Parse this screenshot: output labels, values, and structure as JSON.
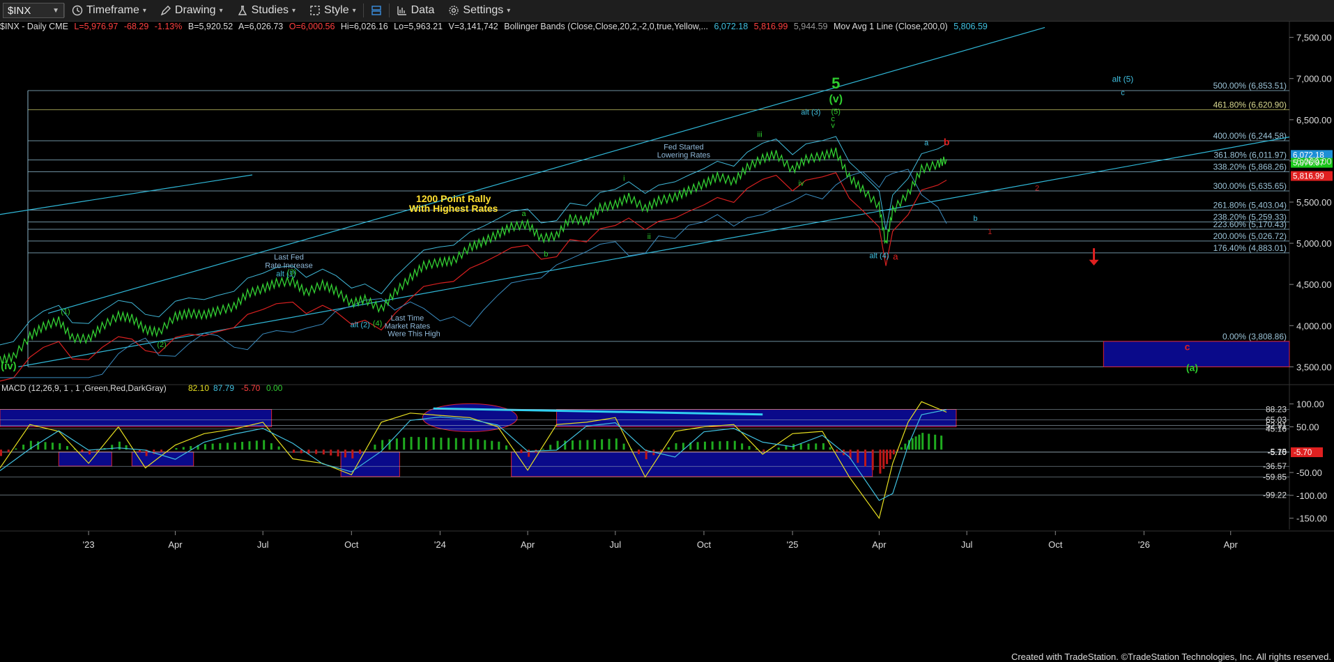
{
  "toolbar": {
    "symbol": "$INX",
    "items": [
      {
        "label": "Timeframe",
        "icon": "clock-icon"
      },
      {
        "label": "Drawing",
        "icon": "pencil-icon"
      },
      {
        "label": "Studies",
        "icon": "flask-icon"
      },
      {
        "label": "Style",
        "icon": "style-icon"
      },
      {
        "label": "",
        "icon": "layout-icon"
      },
      {
        "label": "Data",
        "icon": "bar-chart-icon"
      },
      {
        "label": "Settings",
        "icon": "gear-icon"
      }
    ]
  },
  "infobar": {
    "symbol": "$INX - Daily  CME",
    "last": "L=5,976.97",
    "change": "-68.29",
    "change_pct": "-1.13%",
    "bid": "B=5,920.52",
    "ask": "A=6,026.73",
    "open": "O=6,000.56",
    "high": "Hi=6,026.16",
    "low": "Lo=5,963.21",
    "volume": "V=3,141,742",
    "bollinger_label": "Bollinger Bands (Close,Close,20,2,-2,0,true,Yellow,...",
    "bb_upper": "6,072.18",
    "bb_lower": "5,816.99",
    "bb_mid": "5,944.59",
    "mavg_label": "Mov Avg 1 Line (Close,200,0)",
    "mavg_value": "5,806.59"
  },
  "macd_header": {
    "label": "MACD (12,26,9, 1 , 1 ,Green,Red,DarkGray)",
    "v1": "82.10",
    "v2": "87.79",
    "v3": "-5.70",
    "v4": "0.00"
  },
  "footer": "Created with TradeStation. ©TradeStation Technologies, Inc. All rights reserved.",
  "chart_data": [
    {
      "type": "line",
      "title": "$INX - Daily",
      "x": [
        "2022-10-01",
        "2022-10-15",
        "2022-11-01",
        "2022-11-15",
        "2022-12-01",
        "2022-12-15",
        "2023-01-01",
        "2023-01-15",
        "2023-02-01",
        "2023-02-15",
        "2023-03-01",
        "2023-03-15",
        "2023-04-01",
        "2023-04-15",
        "2023-05-01",
        "2023-05-15",
        "2023-06-01",
        "2023-06-15",
        "2023-07-01",
        "2023-07-15",
        "2023-08-01",
        "2023-08-15",
        "2023-09-01",
        "2023-09-15",
        "2023-10-01",
        "2023-10-15",
        "2023-11-01",
        "2023-11-15",
        "2023-12-01",
        "2023-12-15",
        "2024-01-01",
        "2024-01-15",
        "2024-02-01",
        "2024-02-15",
        "2024-03-01",
        "2024-03-15",
        "2024-04-01",
        "2024-04-15",
        "2024-05-01",
        "2024-05-15",
        "2024-06-01",
        "2024-06-15",
        "2024-07-01",
        "2024-07-15",
        "2024-08-01",
        "2024-08-15",
        "2024-09-01",
        "2024-09-15",
        "2024-10-01",
        "2024-10-15",
        "2024-11-01",
        "2024-11-15",
        "2024-12-01",
        "2024-12-15",
        "2025-01-01",
        "2025-01-15",
        "2025-02-01",
        "2025-02-15",
        "2025-03-01",
        "2025-03-15",
        "2025-04-01",
        "2025-04-08",
        "2025-04-15",
        "2025-05-01",
        "2025-05-15",
        "2025-06-01",
        "2025-06-10"
      ],
      "series": [
        {
          "values": [
            3580,
            3620,
            3870,
            3990,
            4060,
            3850,
            3840,
            3990,
            4120,
            4090,
            3950,
            3920,
            4110,
            4150,
            4130,
            4180,
            4230,
            4390,
            4450,
            4520,
            4540,
            4400,
            4500,
            4420,
            4270,
            4320,
            4200,
            4400,
            4580,
            4730,
            4770,
            4790,
            4950,
            5020,
            5110,
            5200,
            5230,
            5060,
            5090,
            5300,
            5270,
            5430,
            5470,
            5560,
            5420,
            5520,
            5560,
            5640,
            5720,
            5810,
            5750,
            5920,
            6030,
            6080,
            5890,
            6020,
            6060,
            6110,
            5800,
            5650,
            5450,
            4980,
            5400,
            5600,
            5900,
            5960,
            6020
          ]
        }
      ],
      "ylim": [
        3300,
        7700
      ],
      "y_ticks": [
        "7,500.00",
        "7,000.00",
        "6,500.00",
        "6,000.00",
        "5,500.00",
        "5,000.00",
        "4,500.00",
        "4,000.00",
        "3,500.00"
      ],
      "x_ticks": [
        "'23",
        "Apr",
        "Jul",
        "Oct",
        "'24",
        "Apr",
        "Jul",
        "Oct",
        "'25",
        "Apr",
        "Jul",
        "Oct",
        "'26",
        "Apr"
      ],
      "fib_levels": [
        {
          "label": "500.00% (6,853.51)",
          "value": 6853.51
        },
        {
          "label": "461.80% (6,620.90)",
          "value": 6620.9
        },
        {
          "label": "400.00% (6,244.58)",
          "value": 6244.58
        },
        {
          "label": "361.80% (6,011.97)",
          "value": 6011.97
        },
        {
          "label": "338.20% (5,868.26)",
          "value": 5868.26
        },
        {
          "label": "300.00% (5,635.65)",
          "value": 5635.65
        },
        {
          "label": "261.80% (5,403.04)",
          "value": 5403.04
        },
        {
          "label": "238.20% (5,259.33)",
          "value": 5259.33
        },
        {
          "label": "223.60% (5,170.43)",
          "value": 5170.43
        },
        {
          "label": "200.00% (5,026.72)",
          "value": 5026.72
        },
        {
          "label": "176.40% (4,883.01)",
          "value": 4883.01
        },
        {
          "label": "0.00% (3,808.86)",
          "value": 3808.86
        },
        {
          "label": "3,500.00",
          "value": 3500
        }
      ],
      "price_tags": [
        {
          "label": "6,072.18",
          "value": 6072.18,
          "color": "#1e8fd6"
        },
        {
          "label": "5,976.97",
          "value": 5976.97,
          "color": "#18c818"
        },
        {
          "label": "5,816.99",
          "value": 5816.99,
          "color": "#e02020"
        }
      ],
      "annotations": [
        {
          "text": "5",
          "x": "2025-02-15",
          "y": 6880,
          "color": "#2ecc2e",
          "size": 22
        },
        {
          "text": "(v)",
          "x": "2025-02-15",
          "y": 6710,
          "color": "#2ecc2e",
          "size": 16
        },
        {
          "text": "(5)",
          "x": "2025-02-15",
          "y": 6570,
          "color": "#2ecc2e",
          "size": 11
        },
        {
          "text": "c",
          "x": "2025-02-12",
          "y": 6480,
          "color": "#2ecc2e",
          "size": 11
        },
        {
          "text": "v",
          "x": "2025-02-12",
          "y": 6400,
          "color": "#2ecc2e",
          "size": 11
        },
        {
          "text": "alt (3)",
          "x": "2025-01-20",
          "y": 6560,
          "color": "#40c0e0",
          "size": 11
        },
        {
          "text": "iii",
          "x": "2024-11-28",
          "y": 6290,
          "color": "#2ecc2e",
          "size": 11
        },
        {
          "text": "iv",
          "x": "2025-01-10",
          "y": 5700,
          "color": "#2ecc2e",
          "size": 11
        },
        {
          "text": "i",
          "x": "2024-07-10",
          "y": 5760,
          "color": "#2ecc2e",
          "size": 11
        },
        {
          "text": "ii",
          "x": "2024-08-05",
          "y": 5050,
          "color": "#2ecc2e",
          "size": 11
        },
        {
          "text": "a",
          "x": "2024-03-28",
          "y": 5330,
          "color": "#2ecc2e",
          "size": 11
        },
        {
          "text": "b",
          "x": "2024-04-20",
          "y": 4840,
          "color": "#2ecc2e",
          "size": 11
        },
        {
          "text": "Fed Started",
          "x": "2024-09-10",
          "y": 6140,
          "color": "#8fb8d8",
          "size": 11
        },
        {
          "text": "Lowering Rates",
          "x": "2024-09-10",
          "y": 6040,
          "color": "#8fb8d8",
          "size": 11
        },
        {
          "text": "1200 Point Rally",
          "x": "2024-01-15",
          "y": 5500,
          "color": "#ffe030",
          "size": 14
        },
        {
          "text": "With Highest Rates",
          "x": "2024-01-15",
          "y": 5380,
          "color": "#ffe030",
          "size": 14
        },
        {
          "text": "Last Fed",
          "x": "2023-07-28",
          "y": 4800,
          "color": "#8fb8d8",
          "size": 11
        },
        {
          "text": "Rate Increase",
          "x": "2023-07-28",
          "y": 4700,
          "color": "#8fb8d8",
          "size": 11
        },
        {
          "text": "alt (1)",
          "x": "2023-07-25",
          "y": 4600,
          "color": "#40c0e0",
          "size": 11
        },
        {
          "text": "(3)",
          "x": "2023-07-31",
          "y": 4620,
          "color": "#2ecc2e",
          "size": 11
        },
        {
          "text": "(1)",
          "x": "2022-12-08",
          "y": 4140,
          "color": "#2ecc2e",
          "size": 11
        },
        {
          "text": "(2)",
          "x": "2023-03-18",
          "y": 3740,
          "color": "#2ecc2e",
          "size": 11
        },
        {
          "text": "alt (2)",
          "x": "2023-10-10",
          "y": 3980,
          "color": "#40c0e0",
          "size": 11
        },
        {
          "text": "(4)",
          "x": "2023-10-28",
          "y": 4000,
          "color": "#2ecc2e",
          "size": 11
        },
        {
          "text": "Last Time",
          "x": "2023-11-28",
          "y": 4060,
          "color": "#8fb8d8",
          "size": 11
        },
        {
          "text": "Market Rates",
          "x": "2023-11-28",
          "y": 3965,
          "color": "#8fb8d8",
          "size": 11
        },
        {
          "text": "Were This High",
          "x": "2023-12-05",
          "y": 3870,
          "color": "#8fb8d8",
          "size": 11
        },
        {
          "text": "(iv)",
          "x": "2022-10-10",
          "y": 3470,
          "color": "#2ecc2e",
          "size": 15
        },
        {
          "text": "alt (4)",
          "x": "2025-04-01",
          "y": 4820,
          "color": "#40c0e0",
          "size": 11
        },
        {
          "text": "a",
          "x": "2025-04-18",
          "y": 4800,
          "color": "#e02020",
          "size": 13
        },
        {
          "text": "a",
          "x": "2025-05-20",
          "y": 6190,
          "color": "#40c0e0",
          "size": 11
        },
        {
          "text": "b",
          "x": "2025-06-10",
          "y": 6190,
          "color": "#e02020",
          "size": 14
        },
        {
          "text": "2",
          "x": "2025-09-12",
          "y": 5640,
          "color": "#c02020",
          "size": 11
        },
        {
          "text": "b",
          "x": "2025-07-10",
          "y": 5270,
          "color": "#40c0e0",
          "size": 11
        },
        {
          "text": "1",
          "x": "2025-07-25",
          "y": 5110,
          "color": "#c02020",
          "size": 11
        },
        {
          "text": "alt (5)",
          "x": "2025-12-10",
          "y": 6960,
          "color": "#40c0e0",
          "size": 12
        },
        {
          "text": "c",
          "x": "2025-12-10",
          "y": 6800,
          "color": "#40c0e0",
          "size": 11
        },
        {
          "text": "c",
          "x": "2026-02-15",
          "y": 3700,
          "color": "#e02020",
          "size": 14
        },
        {
          "text": "(a)",
          "x": "2026-02-20",
          "y": 3450,
          "color": "#2ecc2e",
          "size": 14
        }
      ]
    },
    {
      "type": "line",
      "title": "MACD (12,26,9, 1 , 1 ,Green,Red,DarkGray)",
      "x": [
        "2022-10-01",
        "2022-11-01",
        "2022-12-01",
        "2023-01-01",
        "2023-02-01",
        "2023-03-01",
        "2023-04-01",
        "2023-05-01",
        "2023-06-01",
        "2023-07-01",
        "2023-08-01",
        "2023-09-01",
        "2023-10-01",
        "2023-11-01",
        "2023-12-01",
        "2024-01-01",
        "2024-02-01",
        "2024-03-01",
        "2024-04-01",
        "2024-05-01",
        "2024-06-01",
        "2024-07-01",
        "2024-08-01",
        "2024-09-01",
        "2024-10-01",
        "2024-11-01",
        "2024-12-01",
        "2025-01-01",
        "2025-02-01",
        "2025-03-01",
        "2025-04-01",
        "2025-04-15",
        "2025-05-01",
        "2025-05-15",
        "2025-06-10"
      ],
      "series": [
        {
          "values": [
            -40,
            55,
            40,
            -30,
            50,
            -40,
            10,
            35,
            45,
            60,
            -20,
            -30,
            -55,
            60,
            80,
            75,
            70,
            50,
            -45,
            55,
            60,
            70,
            -60,
            40,
            50,
            55,
            -10,
            35,
            40,
            -60,
            -150,
            -30,
            60,
            105,
            82
          ]
        }
      ],
      "ylim": [
        -175,
        130
      ],
      "y_ticks": [
        "100.00",
        "50.00",
        "0.00",
        "-50.00",
        "-100.00",
        "-150.00"
      ],
      "level_labels": [
        {
          "label": "88.23",
          "value": 88.23
        },
        {
          "label": "65.03",
          "value": 65.03
        },
        {
          "label": "52.91",
          "value": 52.91
        },
        {
          "label": "45.16",
          "value": 45.16
        },
        {
          "label": "-5.15",
          "value": -5.15
        },
        {
          "label": "-5.70",
          "value": -5.7
        },
        {
          "label": "-36.57",
          "value": -36.57
        },
        {
          "label": "-59.85",
          "value": -59.85
        },
        {
          "label": "-99.22",
          "value": -99.22
        }
      ]
    }
  ]
}
